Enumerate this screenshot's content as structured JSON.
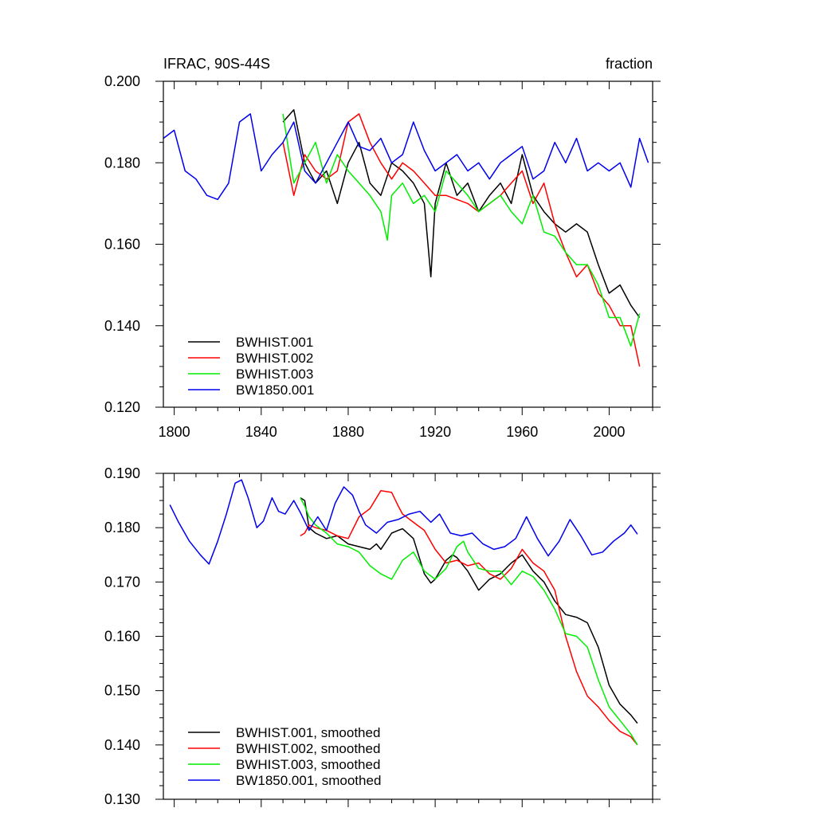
{
  "chart_data": [
    {
      "type": "line",
      "title_left": "IFRAC, 90S-44S",
      "title_right": "fraction",
      "xlim": [
        1795,
        2020
      ],
      "ylim": [
        0.12,
        0.2
      ],
      "x_ticks": [
        1800,
        1840,
        1880,
        1920,
        1960,
        2000
      ],
      "x_tick_labels": [
        "1800",
        "1840",
        "1880",
        "1920",
        "1960",
        "2000"
      ],
      "y_ticks": [
        0.12,
        0.14,
        0.16,
        0.18,
        0.2
      ],
      "y_tick_labels": [
        "0.120",
        "0.140",
        "0.160",
        "0.180",
        "0.200"
      ],
      "grid": false,
      "legend_position": "bottom-left",
      "series": [
        {
          "name": "BWHIST.001",
          "color": "#000000",
          "x": [
            1850,
            1855,
            1860,
            1865,
            1870,
            1875,
            1880,
            1885,
            1890,
            1895,
            1900,
            1905,
            1910,
            1915,
            1918,
            1920,
            1925,
            1930,
            1935,
            1940,
            1945,
            1950,
            1955,
            1960,
            1965,
            1970,
            1975,
            1980,
            1985,
            1990,
            1995,
            2000,
            2005,
            2010,
            2014
          ],
          "y": [
            0.19,
            0.193,
            0.18,
            0.175,
            0.178,
            0.17,
            0.18,
            0.185,
            0.175,
            0.172,
            0.18,
            0.178,
            0.175,
            0.17,
            0.152,
            0.17,
            0.18,
            0.172,
            0.175,
            0.168,
            0.172,
            0.175,
            0.17,
            0.182,
            0.172,
            0.168,
            0.165,
            0.163,
            0.165,
            0.163,
            0.155,
            0.148,
            0.15,
            0.145,
            0.142
          ]
        },
        {
          "name": "BWHIST.002",
          "color": "#ff0000",
          "x": [
            1850,
            1855,
            1860,
            1865,
            1870,
            1875,
            1880,
            1885,
            1890,
            1895,
            1900,
            1905,
            1910,
            1915,
            1920,
            1925,
            1930,
            1935,
            1940,
            1945,
            1950,
            1955,
            1960,
            1965,
            1970,
            1975,
            1980,
            1985,
            1990,
            1995,
            2000,
            2005,
            2010,
            2014
          ],
          "y": [
            0.185,
            0.172,
            0.182,
            0.178,
            0.176,
            0.178,
            0.19,
            0.192,
            0.185,
            0.18,
            0.176,
            0.18,
            0.178,
            0.175,
            0.172,
            0.172,
            0.171,
            0.17,
            0.168,
            0.17,
            0.172,
            0.175,
            0.178,
            0.17,
            0.175,
            0.165,
            0.158,
            0.152,
            0.155,
            0.148,
            0.145,
            0.14,
            0.14,
            0.13
          ]
        },
        {
          "name": "BWHIST.003",
          "color": "#00ee00",
          "x": [
            1850,
            1855,
            1860,
            1865,
            1870,
            1875,
            1880,
            1885,
            1890,
            1895,
            1898,
            1900,
            1905,
            1910,
            1915,
            1920,
            1925,
            1930,
            1935,
            1940,
            1945,
            1950,
            1955,
            1960,
            1965,
            1970,
            1975,
            1980,
            1985,
            1990,
            1995,
            2000,
            2005,
            2010,
            2014
          ],
          "y": [
            0.192,
            0.175,
            0.18,
            0.185,
            0.175,
            0.182,
            0.178,
            0.175,
            0.172,
            0.168,
            0.161,
            0.172,
            0.175,
            0.17,
            0.172,
            0.168,
            0.178,
            0.175,
            0.172,
            0.168,
            0.17,
            0.172,
            0.168,
            0.165,
            0.172,
            0.163,
            0.162,
            0.158,
            0.155,
            0.155,
            0.15,
            0.142,
            0.142,
            0.135,
            0.143
          ]
        },
        {
          "name": "BW1850.001",
          "color": "#0000ee",
          "x": [
            1795,
            1800,
            1805,
            1810,
            1815,
            1820,
            1825,
            1830,
            1835,
            1840,
            1845,
            1850,
            1855,
            1860,
            1865,
            1870,
            1875,
            1880,
            1885,
            1890,
            1895,
            1900,
            1905,
            1910,
            1915,
            1920,
            1925,
            1930,
            1935,
            1940,
            1945,
            1950,
            1955,
            1960,
            1965,
            1970,
            1975,
            1980,
            1985,
            1990,
            1995,
            2000,
            2005,
            2010,
            2014,
            2018
          ],
          "y": [
            0.186,
            0.188,
            0.178,
            0.176,
            0.172,
            0.171,
            0.175,
            0.19,
            0.192,
            0.178,
            0.182,
            0.185,
            0.19,
            0.178,
            0.175,
            0.18,
            0.185,
            0.19,
            0.184,
            0.183,
            0.186,
            0.18,
            0.182,
            0.19,
            0.183,
            0.178,
            0.18,
            0.182,
            0.178,
            0.18,
            0.176,
            0.18,
            0.182,
            0.184,
            0.176,
            0.178,
            0.185,
            0.18,
            0.186,
            0.178,
            0.18,
            0.178,
            0.18,
            0.174,
            0.186,
            0.18
          ]
        }
      ]
    },
    {
      "type": "line",
      "xlim": [
        1795,
        2020
      ],
      "ylim": [
        0.13,
        0.19
      ],
      "x_ticks": [
        1800,
        1840,
        1880,
        1920,
        1960,
        2000
      ],
      "y_ticks": [
        0.13,
        0.14,
        0.15,
        0.16,
        0.17,
        0.18,
        0.19
      ],
      "y_tick_labels": [
        "0.130",
        "0.140",
        "0.150",
        "0.160",
        "0.170",
        "0.180",
        "0.190"
      ],
      "grid": false,
      "legend_position": "bottom-left",
      "series": [
        {
          "name": "BWHIST.001, smoothed",
          "color": "#000000",
          "x": [
            1858,
            1860,
            1862,
            1865,
            1870,
            1875,
            1880,
            1885,
            1890,
            1893,
            1895,
            1900,
            1903,
            1905,
            1910,
            1915,
            1918,
            1920,
            1925,
            1928,
            1930,
            1935,
            1940,
            1945,
            1950,
            1955,
            1960,
            1965,
            1970,
            1975,
            1980,
            1985,
            1990,
            1995,
            2000,
            2005,
            2010,
            2013
          ],
          "y": [
            0.1855,
            0.185,
            0.18,
            0.179,
            0.178,
            0.1785,
            0.177,
            0.1765,
            0.176,
            0.177,
            0.176,
            0.179,
            0.1795,
            0.1798,
            0.178,
            0.1715,
            0.1698,
            0.1705,
            0.174,
            0.175,
            0.1745,
            0.172,
            0.1685,
            0.1705,
            0.1715,
            0.1735,
            0.175,
            0.172,
            0.17,
            0.1665,
            0.164,
            0.1635,
            0.1625,
            0.158,
            0.151,
            0.1475,
            0.1455,
            0.144
          ]
        },
        {
          "name": "BWHIST.002, smoothed",
          "color": "#ff0000",
          "x": [
            1858,
            1860,
            1862,
            1865,
            1870,
            1875,
            1880,
            1885,
            1890,
            1895,
            1900,
            1903,
            1905,
            1910,
            1915,
            1920,
            1925,
            1930,
            1935,
            1940,
            1945,
            1950,
            1955,
            1960,
            1965,
            1970,
            1975,
            1980,
            1985,
            1990,
            1995,
            2000,
            2005,
            2010,
            2013
          ],
          "y": [
            0.1785,
            0.179,
            0.1805,
            0.18,
            0.1795,
            0.1785,
            0.178,
            0.182,
            0.1835,
            0.1868,
            0.1865,
            0.184,
            0.1825,
            0.181,
            0.1795,
            0.176,
            0.1735,
            0.174,
            0.173,
            0.1735,
            0.1715,
            0.1705,
            0.1725,
            0.176,
            0.1735,
            0.172,
            0.1685,
            0.16,
            0.1535,
            0.149,
            0.147,
            0.1445,
            0.1425,
            0.1415,
            0.14
          ]
        },
        {
          "name": "BWHIST.003, smoothed",
          "color": "#00ee00",
          "x": [
            1858,
            1860,
            1862,
            1865,
            1870,
            1875,
            1880,
            1885,
            1890,
            1895,
            1900,
            1905,
            1910,
            1915,
            1920,
            1925,
            1930,
            1933,
            1935,
            1940,
            1945,
            1950,
            1955,
            1960,
            1965,
            1970,
            1975,
            1980,
            1985,
            1990,
            1995,
            2000,
            2005,
            2010,
            2013
          ],
          "y": [
            0.1855,
            0.184,
            0.182,
            0.1805,
            0.179,
            0.177,
            0.1765,
            0.1755,
            0.173,
            0.1715,
            0.1705,
            0.174,
            0.1755,
            0.172,
            0.1705,
            0.1725,
            0.1765,
            0.1775,
            0.1755,
            0.1725,
            0.172,
            0.172,
            0.1695,
            0.172,
            0.171,
            0.1685,
            0.165,
            0.1605,
            0.16,
            0.158,
            0.152,
            0.147,
            0.1445,
            0.142,
            0.14
          ]
        },
        {
          "name": "BW1850.001, smoothed",
          "color": "#0000ee",
          "x": [
            1798,
            1802,
            1807,
            1812,
            1816,
            1820,
            1824,
            1828,
            1831,
            1834,
            1838,
            1841,
            1845,
            1848,
            1851,
            1855,
            1858,
            1862,
            1866,
            1870,
            1874,
            1878,
            1882,
            1885,
            1888,
            1893,
            1898,
            1903,
            1908,
            1913,
            1918,
            1922,
            1927,
            1932,
            1937,
            1942,
            1947,
            1952,
            1957,
            1962,
            1967,
            1972,
            1977,
            1982,
            1987,
            1992,
            1997,
            2002,
            2007,
            2010,
            2013
          ],
          "y": [
            0.1842,
            0.181,
            0.1775,
            0.175,
            0.1733,
            0.1775,
            0.1825,
            0.1882,
            0.1888,
            0.1855,
            0.18,
            0.1812,
            0.1855,
            0.183,
            0.1825,
            0.185,
            0.1828,
            0.1795,
            0.182,
            0.1795,
            0.1845,
            0.1875,
            0.186,
            0.183,
            0.1805,
            0.179,
            0.181,
            0.1815,
            0.1825,
            0.183,
            0.181,
            0.1825,
            0.179,
            0.1785,
            0.179,
            0.177,
            0.176,
            0.1765,
            0.178,
            0.182,
            0.178,
            0.1748,
            0.1775,
            0.1815,
            0.1785,
            0.175,
            0.1755,
            0.1775,
            0.179,
            0.1805,
            0.1788
          ]
        }
      ]
    }
  ]
}
